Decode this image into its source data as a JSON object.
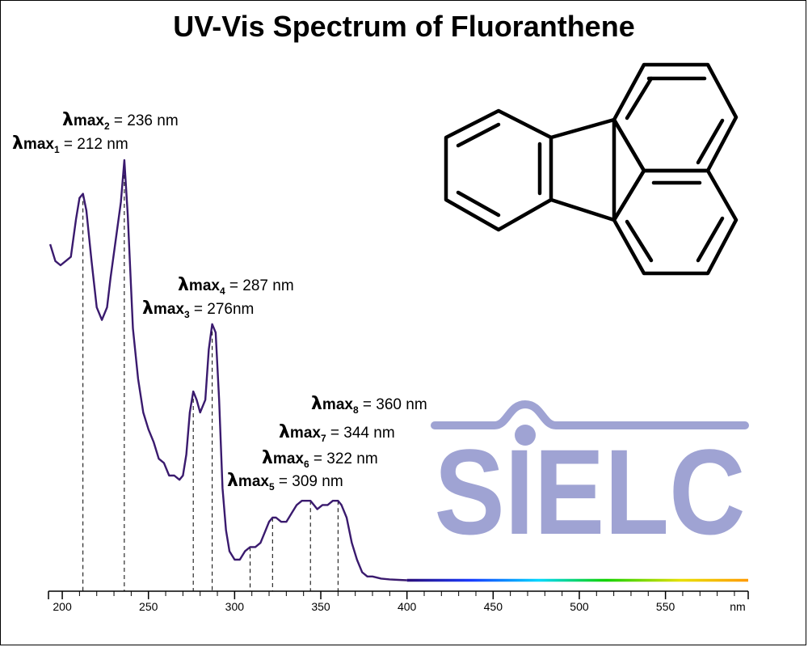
{
  "chart_data": {
    "type": "line",
    "title": "UV-Vis Spectrum of Fluoranthene",
    "xlabel": "nm",
    "ylabel": "",
    "xlim": [
      192,
      598
    ],
    "ylim": [
      0,
      1.0
    ],
    "x_ticks": [
      200,
      250,
      300,
      350,
      400,
      450,
      500,
      550
    ],
    "grid": false,
    "series": [
      {
        "x": [
          193,
          196,
          199,
          202,
          205,
          208,
          210,
          212,
          214,
          217,
          220,
          223,
          226,
          228,
          231,
          234,
          236,
          238,
          241,
          244,
          247,
          250,
          253,
          256,
          259,
          262,
          265,
          268,
          270,
          272,
          274,
          276,
          278,
          280,
          283,
          285,
          287,
          289,
          291,
          293,
          295,
          297,
          300,
          303,
          306,
          309,
          312,
          315,
          318,
          320,
          322,
          324,
          327,
          330,
          333,
          336,
          339,
          341,
          344,
          346,
          348,
          351,
          354,
          357,
          360,
          362,
          365,
          368,
          371,
          374,
          377,
          380,
          385,
          390,
          395,
          400,
          410,
          420,
          440,
          460,
          480,
          500,
          520,
          540,
          560,
          580,
          598
        ],
        "y": [
          0.8,
          0.76,
          0.75,
          0.76,
          0.77,
          0.86,
          0.91,
          0.92,
          0.88,
          0.76,
          0.65,
          0.62,
          0.65,
          0.72,
          0.81,
          0.9,
          1.0,
          0.87,
          0.6,
          0.48,
          0.4,
          0.36,
          0.33,
          0.29,
          0.28,
          0.25,
          0.25,
          0.24,
          0.25,
          0.3,
          0.4,
          0.45,
          0.43,
          0.4,
          0.43,
          0.55,
          0.61,
          0.59,
          0.43,
          0.22,
          0.12,
          0.07,
          0.05,
          0.05,
          0.07,
          0.08,
          0.08,
          0.09,
          0.12,
          0.14,
          0.15,
          0.15,
          0.14,
          0.14,
          0.16,
          0.18,
          0.19,
          0.19,
          0.19,
          0.18,
          0.17,
          0.18,
          0.18,
          0.19,
          0.19,
          0.18,
          0.15,
          0.09,
          0.05,
          0.02,
          0.01,
          0.01,
          0.005,
          0.003,
          0.002,
          0.001,
          0.0,
          0.0,
          0.0,
          0.0,
          0.0,
          0.0,
          0.0,
          0.0,
          0.0,
          0.0,
          0.0
        ],
        "color": "#3a1a6e"
      }
    ],
    "peaks": [
      {
        "x": 212,
        "label": "212 nm",
        "index": "1"
      },
      {
        "x": 236,
        "label": "236 nm",
        "index": "2"
      },
      {
        "x": 276,
        "label": "276nm",
        "index": "3"
      },
      {
        "x": 287,
        "label": "287 nm",
        "index": "4"
      },
      {
        "x": 309,
        "label": "309 nm",
        "index": "5"
      },
      {
        "x": 322,
        "label": "322 nm",
        "index": "6"
      },
      {
        "x": 344,
        "label": "344 nm",
        "index": "7"
      },
      {
        "x": 360,
        "label": "360 nm",
        "index": "8"
      }
    ],
    "peak_prefix": "λ",
    "peak_max": "max",
    "peak_eq": " = ",
    "visible_gradient_start_nm": 400,
    "logo": {
      "text": "SIELC",
      "color": "#9fa3d3"
    }
  }
}
